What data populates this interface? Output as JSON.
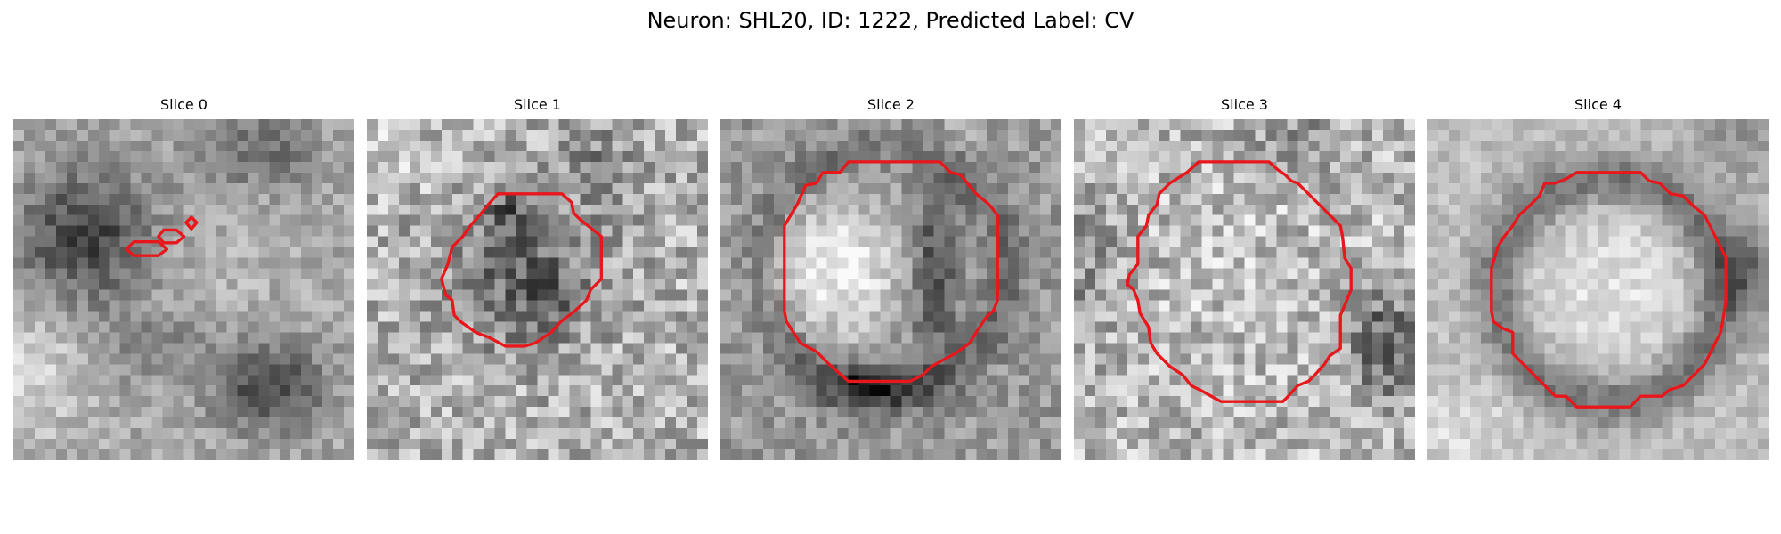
{
  "figure": {
    "title": "Neuron: SHL20, ID: 1222, Predicted Label: CV"
  },
  "slices": [
    {
      "title": "Slice 0",
      "contour_color": "#e8171b"
    },
    {
      "title": "Slice 1",
      "contour_color": "#e8171b"
    },
    {
      "title": "Slice 2",
      "contour_color": "#e8171b"
    },
    {
      "title": "Slice 3",
      "contour_color": "#e8171b"
    },
    {
      "title": "Slice 4",
      "contour_color": "#e8171b"
    }
  ]
}
